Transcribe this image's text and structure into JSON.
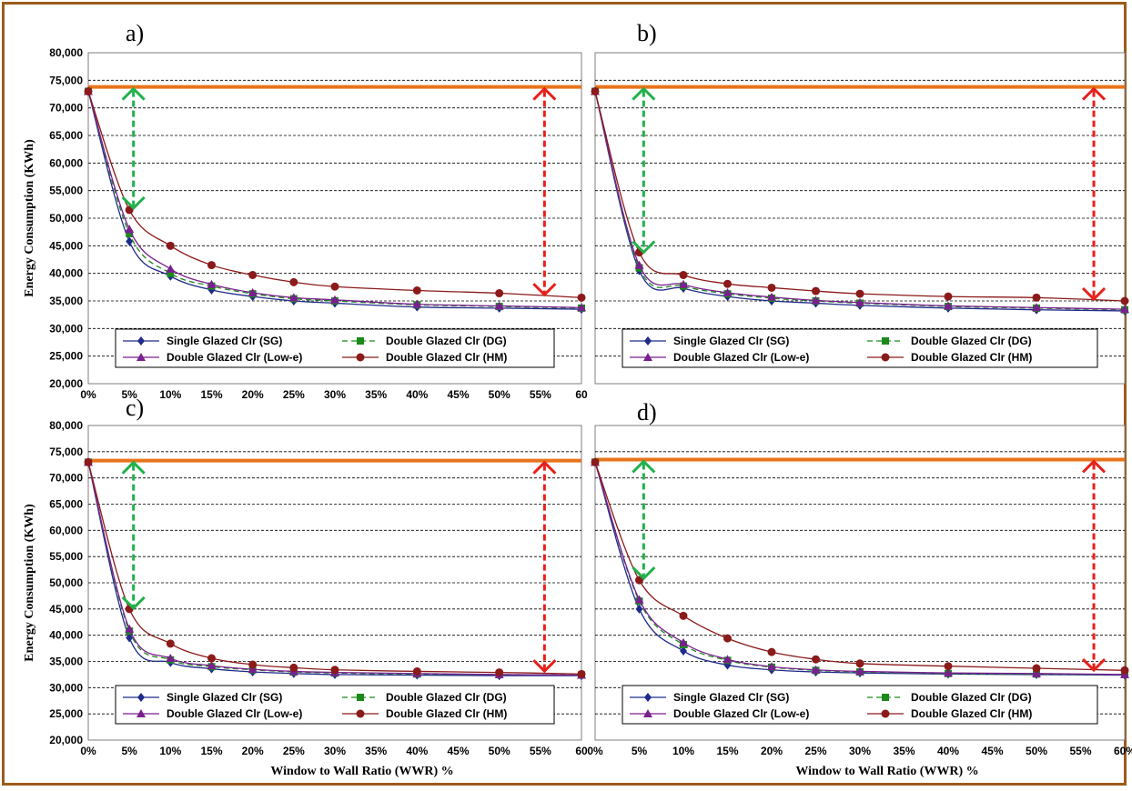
{
  "chart_data": [
    {
      "type": "line",
      "panel": "a)",
      "ylabel": "Energy Consumption (KWh)",
      "xlabel": "",
      "ylim": [
        20000,
        80000
      ],
      "x": [
        0,
        5,
        10,
        15,
        20,
        25,
        30,
        40,
        50,
        60
      ],
      "xtick_labels": [
        "0%",
        "5%",
        "10%",
        "15%",
        "20%",
        "25%",
        "30%",
        "35%",
        "40%",
        "45%",
        "50%",
        "55%",
        "60"
      ],
      "ytick_labels": [
        "20,000",
        "25,000",
        "30,000",
        "35,000",
        "40,000",
        "45,000",
        "50,000",
        "55,000",
        "60,000",
        "65,000",
        "70,000",
        "75,000",
        "80,000"
      ],
      "reference_line": 73800,
      "arrows": [
        {
          "color": "green",
          "x": 5.5,
          "from": 51500,
          "to": 73800
        },
        {
          "color": "red",
          "x": 55.5,
          "from": 35800,
          "to": 73800
        }
      ],
      "series": [
        {
          "name": "Single Glazed Clr (SG)",
          "values": [
            73000,
            45800,
            39500,
            37000,
            35800,
            35000,
            34600,
            33900,
            33700,
            33500
          ]
        },
        {
          "name": "Double Glazed Clr (DG)",
          "values": [
            73000,
            47200,
            40000,
            37700,
            36300,
            35400,
            35000,
            34300,
            34000,
            33700
          ]
        },
        {
          "name": "Double Glazed Clr (Low-e)",
          "values": [
            73000,
            48000,
            40800,
            38000,
            36500,
            35600,
            35200,
            34400,
            34100,
            33800
          ]
        },
        {
          "name": "Double Glazed Clr (HM)",
          "values": [
            73000,
            51500,
            45000,
            41500,
            39700,
            38400,
            37600,
            36900,
            36400,
            35600
          ]
        }
      ]
    },
    {
      "type": "line",
      "panel": "b)",
      "ylabel": "",
      "xlabel": "",
      "ylim": [
        20000,
        80000
      ],
      "x": [
        0,
        5,
        10,
        15,
        20,
        25,
        30,
        40,
        50,
        60
      ],
      "xtick_labels": [],
      "ytick_labels": [],
      "reference_line": 73800,
      "arrows": [
        {
          "color": "green",
          "x": 5.5,
          "from": 43500,
          "to": 73800
        },
        {
          "color": "red",
          "x": 56.5,
          "from": 35000,
          "to": 73800
        }
      ],
      "series": [
        {
          "name": "Single Glazed Clr (SG)",
          "values": [
            73000,
            40500,
            37300,
            35800,
            35000,
            34600,
            34200,
            33700,
            33400,
            33200
          ]
        },
        {
          "name": "Double Glazed Clr (DG)",
          "values": [
            73000,
            41000,
            37700,
            36300,
            35500,
            35000,
            34600,
            34000,
            33700,
            33400
          ]
        },
        {
          "name": "Double Glazed Clr (Low-e)",
          "values": [
            73000,
            41500,
            38000,
            36500,
            35700,
            35100,
            34700,
            34100,
            33800,
            33500
          ]
        },
        {
          "name": "Double Glazed Clr (HM)",
          "values": [
            73000,
            43800,
            39700,
            38100,
            37400,
            36800,
            36300,
            35800,
            35600,
            35000
          ]
        }
      ]
    },
    {
      "type": "line",
      "panel": "c)",
      "ylabel": "Energy Consumption (KWh)",
      "xlabel": "Window to Wall Ratio (WWR) %",
      "ylim": [
        20000,
        80000
      ],
      "x": [
        0,
        5,
        10,
        15,
        20,
        25,
        30,
        40,
        50,
        60
      ],
      "xtick_labels": [
        "0%",
        "5%",
        "10%",
        "15%",
        "20%",
        "25%",
        "30%",
        "35%",
        "40%",
        "45%",
        "50%",
        "55%",
        "60"
      ],
      "ytick_labels": [
        "20,000",
        "25,000",
        "30,000",
        "35,000",
        "40,000",
        "45,000",
        "50,000",
        "55,000",
        "60,000",
        "65,000",
        "70,000",
        "75,000",
        "80,000"
      ],
      "reference_line": 73300,
      "arrows": [
        {
          "color": "green",
          "x": 5.5,
          "from": 44800,
          "to": 73300
        },
        {
          "color": "red",
          "x": 55.5,
          "from": 32800,
          "to": 73300
        }
      ],
      "series": [
        {
          "name": "Single Glazed Clr (SG)",
          "values": [
            73000,
            39500,
            34800,
            33600,
            33000,
            32700,
            32500,
            32400,
            32300,
            32300
          ]
        },
        {
          "name": "Double Glazed Clr (DG)",
          "values": [
            73000,
            40800,
            35300,
            34000,
            33400,
            33000,
            32800,
            32600,
            32500,
            32400
          ]
        },
        {
          "name": "Double Glazed Clr (Low-e)",
          "values": [
            73000,
            41200,
            35600,
            34200,
            33500,
            33100,
            32900,
            32700,
            32500,
            32400
          ]
        },
        {
          "name": "Double Glazed Clr (HM)",
          "values": [
            73000,
            45000,
            38400,
            35600,
            34400,
            33800,
            33400,
            33100,
            32900,
            32600
          ]
        }
      ]
    },
    {
      "type": "line",
      "panel": "d)",
      "ylabel": "",
      "xlabel": "Window to Wall Ratio (WWR) %",
      "ylim": [
        20000,
        80000
      ],
      "x": [
        0,
        5,
        10,
        15,
        20,
        25,
        30,
        40,
        50,
        60
      ],
      "xtick_labels": [
        "0%",
        "5%",
        "10%",
        "15%",
        "20%",
        "25%",
        "30%",
        "35%",
        "40%",
        "45%",
        "50%",
        "55%",
        "60%"
      ],
      "ytick_labels": [],
      "reference_line": 73500,
      "arrows": [
        {
          "color": "green",
          "x": 5.5,
          "from": 50500,
          "to": 73500
        },
        {
          "color": "red",
          "x": 56.5,
          "from": 33000,
          "to": 73500
        }
      ],
      "series": [
        {
          "name": "Single Glazed Clr (SG)",
          "values": [
            73000,
            45000,
            37000,
            34300,
            33400,
            33000,
            32800,
            32600,
            32500,
            32400
          ]
        },
        {
          "name": "Double Glazed Clr (DG)",
          "values": [
            73000,
            46500,
            38200,
            35200,
            33900,
            33300,
            33000,
            32700,
            32600,
            32500
          ]
        },
        {
          "name": "Double Glazed Clr (Low-e)",
          "values": [
            73000,
            46800,
            38600,
            35400,
            34000,
            33400,
            33100,
            32800,
            32700,
            32500
          ]
        },
        {
          "name": "Double Glazed Clr (HM)",
          "values": [
            73000,
            50500,
            43700,
            39400,
            36800,
            35400,
            34600,
            34100,
            33700,
            33300
          ]
        }
      ]
    }
  ]
}
